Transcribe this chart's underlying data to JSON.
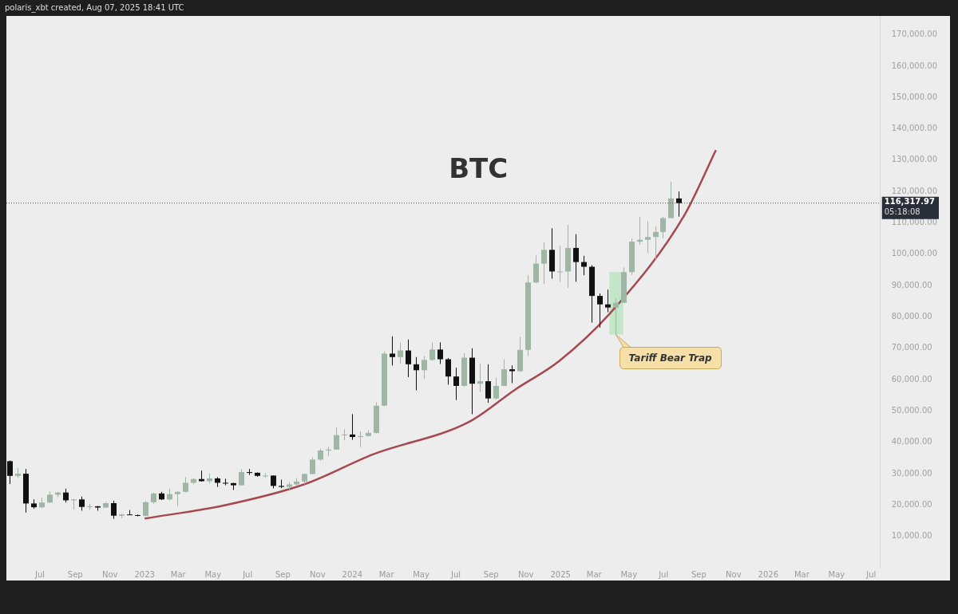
{
  "chart_data": {
    "type": "candlestick",
    "title": "BTC",
    "colors": [
      "#111111",
      "#9fb5a6",
      "#111111",
      "#111111",
      "#9fb5a6",
      "#9fb5a6",
      "#9fb5a6",
      "#111111",
      "#9fb5a6",
      "#111111",
      "#9fb5a6",
      "#111111",
      "#9fb5a6",
      "#111111",
      "#9fb5a6",
      "#111111",
      "#111111",
      "#9fb5a6",
      "#9fb5a6",
      "#111111",
      "#9fb5a6",
      "#9fb5a6",
      "#9fb5a6",
      "#9fb5a6",
      "#111111",
      "#9fb5a6",
      "#111111",
      "#111111",
      "#111111",
      "#9fb5a6",
      "#111111",
      "#111111",
      "#9fb5a6",
      "#111111",
      "#111111",
      "#9fb5a6",
      "#9fb5a6",
      "#9fb5a6",
      "#9fb5a6",
      "#9fb5a6",
      "#9fb5a6",
      "#9fb5a6",
      "#9fb5a6",
      "#111111",
      "#9fb5a6",
      "#9fb5a6",
      "#9fb5a6",
      "#9fb5a6",
      "#111111",
      "#9fb5a6",
      "#111111",
      "#111111",
      "#9fb5a6",
      "#9fb5a6",
      "#111111",
      "#111111",
      "#111111",
      "#9fb5a6",
      "#111111",
      "#9fb5a6",
      "#111111",
      "#9fb5a6",
      "#9fb5a6",
      "#111111",
      "#9fb5a6",
      "#9fb5a6",
      "#9fb5a6",
      "#9fb5a6",
      "#111111",
      "#9fb5a6",
      "#9fb5a6",
      "#111111",
      "#111111",
      "#111111",
      "#111111",
      "#111111",
      "#9fb5a6",
      "#9fb5a6",
      "#9fb5a6",
      "#9fb5a6",
      "#9fb5a6",
      "#9fb5a6",
      "#9fb5a6",
      "#9fb5a6",
      "#111111"
    ],
    "x": [
      "2022-05-09",
      "2022-05-23",
      "2022-06-06",
      "2022-06-20",
      "2022-07-04",
      "2022-07-18",
      "2022-08-01",
      "2022-08-15",
      "2022-08-29",
      "2022-09-12",
      "2022-09-26",
      "2022-10-10",
      "2022-10-24",
      "2022-11-07",
      "2022-11-21",
      "2022-12-05",
      "2022-12-19",
      "2023-01-02",
      "2023-01-16",
      "2023-01-30",
      "2023-02-13",
      "2023-02-27",
      "2023-03-13",
      "2023-03-27",
      "2023-04-10",
      "2023-04-24",
      "2023-05-08",
      "2023-05-22",
      "2023-06-05",
      "2023-06-19",
      "2023-07-03",
      "2023-07-17",
      "2023-07-31",
      "2023-08-14",
      "2023-08-28",
      "2023-09-11",
      "2023-09-25",
      "2023-10-09",
      "2023-10-23",
      "2023-11-06",
      "2023-11-20",
      "2023-12-04",
      "2023-12-18",
      "2024-01-01",
      "2024-01-15",
      "2024-01-29",
      "2024-02-12",
      "2024-02-26",
      "2024-03-11",
      "2024-03-25",
      "2024-04-08",
      "2024-04-22",
      "2024-05-06",
      "2024-05-20",
      "2024-06-03",
      "2024-06-17",
      "2024-07-01",
      "2024-07-15",
      "2024-07-29",
      "2024-08-12",
      "2024-08-26",
      "2024-09-09",
      "2024-09-23",
      "2024-10-07",
      "2024-10-21",
      "2024-11-04",
      "2024-11-18",
      "2024-12-02",
      "2024-12-16",
      "2024-12-30",
      "2025-01-13",
      "2025-01-27",
      "2025-02-10",
      "2025-02-24",
      "2025-03-10",
      "2025-03-24",
      "2025-04-07",
      "2025-04-21",
      "2025-05-05",
      "2025-05-19",
      "2025-06-02",
      "2025-06-16",
      "2025-06-30",
      "2025-07-14",
      "2025-07-28"
    ],
    "ohlc": [
      [
        34000,
        34200,
        26700,
        29300
      ],
      [
        29300,
        31800,
        28700,
        30000
      ],
      [
        30000,
        31500,
        17600,
        20500
      ],
      [
        20500,
        21800,
        18800,
        19300
      ],
      [
        19300,
        22400,
        19000,
        20800
      ],
      [
        20800,
        24300,
        20700,
        23300
      ],
      [
        23300,
        24200,
        22500,
        24000
      ],
      [
        24000,
        25200,
        20800,
        21500
      ],
      [
        21500,
        22000,
        18600,
        21800
      ],
      [
        21800,
        22700,
        18200,
        19400
      ],
      [
        19400,
        20400,
        18500,
        19600
      ],
      [
        19600,
        19700,
        18200,
        19200
      ],
      [
        19200,
        21000,
        19100,
        20600
      ],
      [
        20600,
        21400,
        15600,
        16600
      ],
      [
        16600,
        17300,
        15800,
        17000
      ],
      [
        17000,
        18400,
        16800,
        16800
      ],
      [
        16800,
        17000,
        16400,
        16550
      ],
      [
        16550,
        21300,
        16500,
        20900
      ],
      [
        20900,
        23900,
        20400,
        23700
      ],
      [
        23700,
        24200,
        21600,
        21800
      ],
      [
        21800,
        25200,
        21500,
        23500
      ],
      [
        23500,
        24500,
        19600,
        24200
      ],
      [
        24200,
        28900,
        24000,
        27100
      ],
      [
        27100,
        28600,
        26600,
        28300
      ],
      [
        28300,
        31000,
        27500,
        27600
      ],
      [
        27600,
        30000,
        26900,
        28500
      ],
      [
        28500,
        28900,
        25800,
        27100
      ],
      [
        27100,
        28400,
        26300,
        27000
      ],
      [
        27000,
        27100,
        24800,
        26300
      ],
      [
        26300,
        31400,
        26200,
        30500
      ],
      [
        30500,
        31500,
        29600,
        30300
      ],
      [
        30300,
        30400,
        29000,
        29300
      ],
      [
        29300,
        30200,
        28700,
        29400
      ],
      [
        29400,
        29500,
        25300,
        26100
      ],
      [
        26100,
        28100,
        25400,
        25800
      ],
      [
        25800,
        27400,
        24900,
        26600
      ],
      [
        26600,
        28600,
        26000,
        27500
      ],
      [
        27500,
        30000,
        26600,
        29900
      ],
      [
        29900,
        35300,
        29800,
        34500
      ],
      [
        34500,
        38000,
        34100,
        37400
      ],
      [
        37400,
        38500,
        35700,
        37700
      ],
      [
        37700,
        44700,
        37600,
        42300
      ],
      [
        42300,
        44200,
        40600,
        42500
      ],
      [
        42500,
        49000,
        40800,
        41700
      ],
      [
        41700,
        43500,
        38500,
        42000
      ],
      [
        42000,
        43900,
        41900,
        43000
      ],
      [
        43000,
        52800,
        42800,
        51700
      ],
      [
        51700,
        69000,
        51500,
        68300
      ],
      [
        68300,
        73800,
        64500,
        67200
      ],
      [
        67200,
        71800,
        65000,
        69300
      ],
      [
        69300,
        72800,
        60800,
        64900
      ],
      [
        64900,
        67200,
        56600,
        63000
      ],
      [
        63000,
        67500,
        60200,
        66300
      ],
      [
        66300,
        71900,
        66000,
        69600
      ],
      [
        69600,
        71900,
        65000,
        66500
      ],
      [
        66500,
        66900,
        58400,
        61000
      ],
      [
        61000,
        63800,
        53500,
        58000
      ],
      [
        58000,
        68400,
        57800,
        67000
      ],
      [
        67000,
        70000,
        49000,
        58700
      ],
      [
        58700,
        65000,
        56100,
        59500
      ],
      [
        59500,
        64900,
        52600,
        54000
      ],
      [
        54000,
        60600,
        53600,
        58000
      ],
      [
        58000,
        66500,
        58000,
        63300
      ],
      [
        63300,
        64500,
        58900,
        62700
      ],
      [
        62700,
        73600,
        62500,
        69500
      ],
      [
        69500,
        93400,
        67500,
        91000
      ],
      [
        91000,
        99600,
        90700,
        97000
      ],
      [
        97000,
        103800,
        90500,
        101400
      ],
      [
        101400,
        108300,
        92200,
        94500
      ],
      [
        94500,
        102700,
        91200,
        94500
      ],
      [
        94500,
        109400,
        89300,
        102000
      ],
      [
        102000,
        106400,
        91200,
        97500
      ],
      [
        97500,
        99500,
        93300,
        96000
      ],
      [
        96000,
        96500,
        78200,
        86700
      ],
      [
        86700,
        87500,
        76600,
        84000
      ],
      [
        84000,
        88700,
        81500,
        83000
      ],
      [
        83000,
        85900,
        74400,
        84500
      ],
      [
        84500,
        95800,
        84500,
        94300
      ],
      [
        94300,
        105000,
        93400,
        104000
      ],
      [
        104000,
        111900,
        103000,
        104600
      ],
      [
        104600,
        110500,
        100400,
        105500
      ],
      [
        105500,
        108900,
        98200,
        107100
      ],
      [
        107100,
        112000,
        105100,
        111500
      ],
      [
        111500,
        123200,
        111500,
        117800
      ],
      [
        117800,
        120000,
        112000,
        116300
      ]
    ],
    "series": [
      {
        "type": "line",
        "color": "#a5484f",
        "x": [
          "2023-01-01",
          "2023-05-21",
          "2023-10-10",
          "2024-02-07",
          "2024-07-24",
          "2024-10-13",
          "2024-12-30",
          "2025-04-06",
          "2025-08-07",
          "2025-10-01"
        ],
        "values": [
          15700,
          19900,
          26700,
          36200,
          46500,
          56800,
          66000,
          82800,
          112600,
          133200
        ]
      }
    ],
    "xlim": [
      "2022-05-03",
      "2026-07-17"
    ],
    "xticks": [
      {
        "value": "2022-07-01",
        "label": "Jul"
      },
      {
        "value": "2022-09-01",
        "label": "Sep"
      },
      {
        "value": "2022-11-01",
        "label": "Nov"
      },
      {
        "value": "2023-01-01",
        "label": "2023"
      },
      {
        "value": "2023-03-01",
        "label": "Mar"
      },
      {
        "value": "2023-05-01",
        "label": "May"
      },
      {
        "value": "2023-07-01",
        "label": "Jul"
      },
      {
        "value": "2023-09-01",
        "label": "Sep"
      },
      {
        "value": "2023-11-01",
        "label": "Nov"
      },
      {
        "value": "2024-01-01",
        "label": "2024"
      },
      {
        "value": "2024-03-01",
        "label": "Mar"
      },
      {
        "value": "2024-05-01",
        "label": "May"
      },
      {
        "value": "2024-07-01",
        "label": "Jul"
      },
      {
        "value": "2024-09-01",
        "label": "Sep"
      },
      {
        "value": "2024-11-01",
        "label": "Nov"
      },
      {
        "value": "2025-01-01",
        "label": "2025"
      },
      {
        "value": "2025-03-01",
        "label": "Mar"
      },
      {
        "value": "2025-05-01",
        "label": "May"
      },
      {
        "value": "2025-07-01",
        "label": "Jul"
      },
      {
        "value": "2025-09-01",
        "label": "Sep"
      },
      {
        "value": "2025-11-01",
        "label": "Nov"
      },
      {
        "value": "2026-01-01",
        "label": "2026"
      },
      {
        "value": "2026-03-01",
        "label": "Mar"
      },
      {
        "value": "2026-05-01",
        "label": "May"
      },
      {
        "value": "2026-07-01",
        "label": "Jul"
      }
    ],
    "ylim": [
      0,
      176000
    ],
    "yticks": [
      {
        "value": 10000,
        "label": "10,000.00"
      },
      {
        "value": 20000,
        "label": "20,000.00"
      },
      {
        "value": 30000,
        "label": "30,000.00"
      },
      {
        "value": 40000,
        "label": "40,000.00"
      },
      {
        "value": 50000,
        "label": "50,000.00"
      },
      {
        "value": 60000,
        "label": "60,000.00"
      },
      {
        "value": 70000,
        "label": "70,000.00"
      },
      {
        "value": 80000,
        "label": "80,000.00"
      },
      {
        "value": 90000,
        "label": "90,000.00"
      },
      {
        "value": 100000,
        "label": "100,000.00"
      },
      {
        "value": 110000,
        "label": "110,000.00"
      },
      {
        "value": 120000,
        "label": "120,000.00"
      },
      {
        "value": 130000,
        "label": "130,000.00"
      },
      {
        "value": 140000,
        "label": "140,000.00"
      },
      {
        "value": 150000,
        "label": "150,000.00"
      },
      {
        "value": 160000,
        "label": "160,000.00"
      },
      {
        "value": 170000,
        "label": "170,000.00"
      }
    ],
    "ref_lines": [
      {
        "axis": "y",
        "value": 116317.97,
        "label": "116,317.97",
        "color": "#555555",
        "line_style": "dotted"
      }
    ],
    "bands": [
      {
        "axis": "x",
        "from": "2025-03-28",
        "to": "2025-04-21",
        "color": "#b6e3bd"
      }
    ],
    "annotations": [
      "polaris_xbt created, Aug 07, 2025 18:41 UTC",
      "05:18:08",
      {
        "text": "Tariff Bear Trap",
        "x": "2025-04-07",
        "y": 74400
      }
    ],
    "legend": false
  }
}
